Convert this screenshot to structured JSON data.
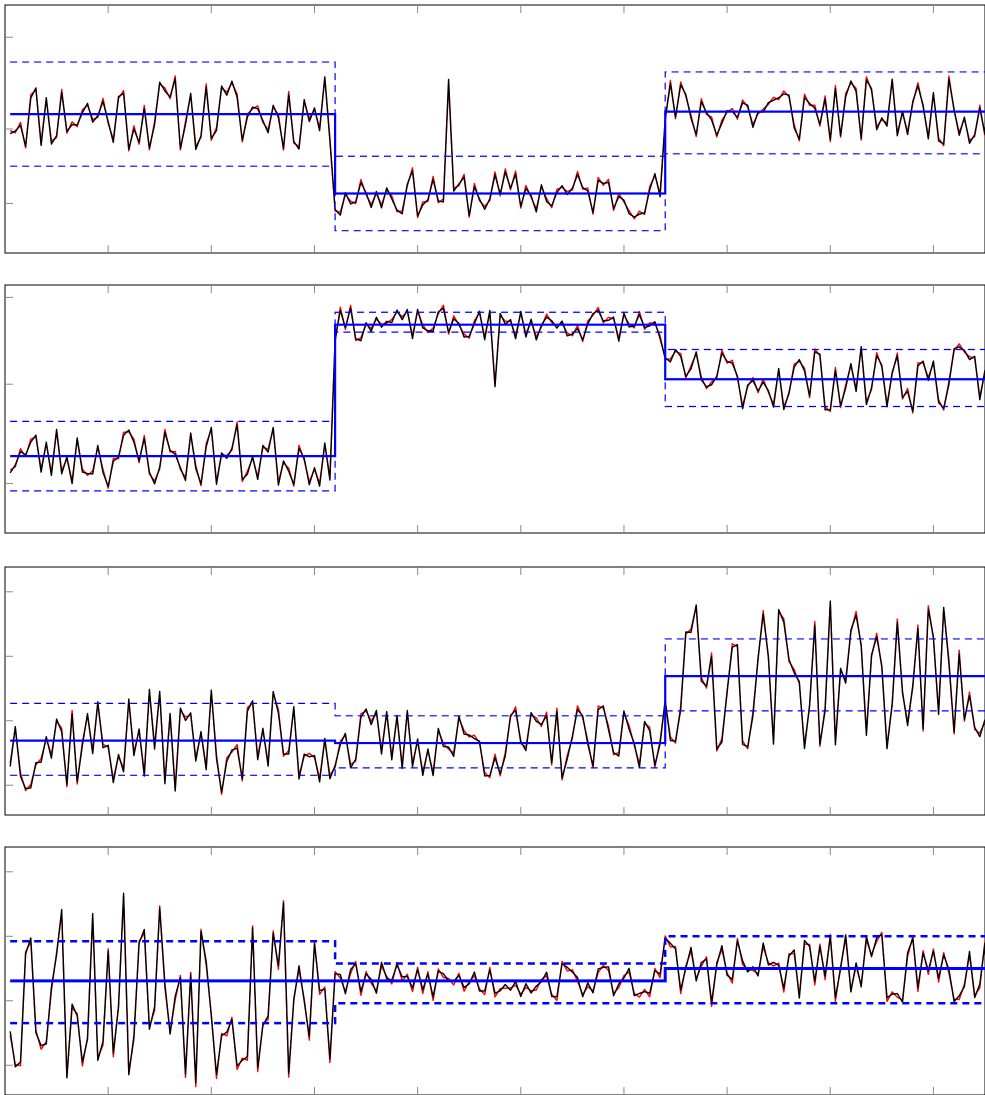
{
  "colors": {
    "frame": "#000000",
    "mean_line": "#0000ff",
    "band_line": "#0000ff",
    "series_black": "#000000",
    "series_red": "#ff0000",
    "background": "#ffffff"
  },
  "chart_data": [
    {
      "type": "line",
      "panel": 1,
      "x_range": [
        0,
        190
      ],
      "ylim": [
        0,
        1
      ],
      "grid": false,
      "x_tick_positions": [
        20,
        40,
        60,
        80,
        100,
        120,
        140,
        160,
        180
      ],
      "y_tick_positions": [
        0.2,
        0.5,
        0.87
      ],
      "segments": [
        {
          "start": 1,
          "end": 64,
          "mean": 0.56,
          "lower": 0.35,
          "upper": 0.77
        },
        {
          "start": 64,
          "end": 128,
          "mean": 0.24,
          "lower": 0.09,
          "upper": 0.39
        },
        {
          "start": 128,
          "end": 190,
          "mean": 0.57,
          "lower": 0.4,
          "upper": 0.73
        }
      ],
      "series": [
        {
          "color_key": "series_black",
          "seed": 11,
          "noise": [
            0.08,
            0.05,
            0.07
          ],
          "spike": {
            "x": 86,
            "value": 0.7
          }
        },
        {
          "color_key": "series_red",
          "seed": 11,
          "noise": [
            0.08,
            0.05,
            0.07
          ],
          "offset": 0.012,
          "spike": {
            "x": 86,
            "value": 0.68
          }
        }
      ]
    },
    {
      "type": "line",
      "panel": 2,
      "x_range": [
        0,
        190
      ],
      "ylim": [
        0,
        1
      ],
      "grid": false,
      "x_tick_positions": [
        20,
        40,
        60,
        80,
        100,
        120,
        140,
        160,
        180
      ],
      "y_tick_positions": [
        0.2,
        0.6,
        0.95
      ],
      "segments": [
        {
          "start": 1,
          "end": 64,
          "mean": 0.31,
          "lower": 0.17,
          "upper": 0.45
        },
        {
          "start": 64,
          "end": 128,
          "mean": 0.84,
          "lower": 0.81,
          "upper": 0.89
        },
        {
          "start": 128,
          "end": 190,
          "mean": 0.62,
          "lower": 0.51,
          "upper": 0.74
        }
      ],
      "series": [
        {
          "color_key": "series_black",
          "seed": 23,
          "noise": [
            0.07,
            0.035,
            0.07
          ],
          "spike": {
            "x": 95,
            "value": 0.59
          }
        },
        {
          "color_key": "series_red",
          "seed": 23,
          "noise": [
            0.07,
            0.035,
            0.07
          ],
          "offset": 0.012,
          "spike": {
            "x": 95,
            "value": 0.6
          }
        }
      ]
    },
    {
      "type": "line",
      "panel": 3,
      "x_range": [
        0,
        190
      ],
      "ylim": [
        0,
        1
      ],
      "grid": false,
      "x_tick_positions": [
        20,
        40,
        60,
        80,
        100,
        120,
        140,
        160,
        180
      ],
      "y_tick_positions": [
        0.12,
        0.38,
        0.64,
        0.9
      ],
      "segments": [
        {
          "start": 1,
          "end": 64,
          "mean": 0.3,
          "lower": 0.16,
          "upper": 0.45
        },
        {
          "start": 64,
          "end": 128,
          "mean": 0.29,
          "lower": 0.19,
          "upper": 0.4
        },
        {
          "start": 128,
          "end": 190,
          "mean": 0.56,
          "lower": 0.42,
          "upper": 0.71
        }
      ],
      "series": [
        {
          "color_key": "series_black",
          "seed": 37,
          "noise": [
            0.11,
            0.08,
            0.16
          ]
        },
        {
          "color_key": "series_red",
          "seed": 37,
          "noise": [
            0.11,
            0.08,
            0.16
          ],
          "offset": 0.014
        }
      ]
    },
    {
      "type": "line",
      "panel": 4,
      "x_range": [
        0,
        190
      ],
      "ylim": [
        0,
        1
      ],
      "grid": false,
      "x_tick_positions": [
        20,
        40,
        60,
        80,
        100,
        120,
        140,
        160,
        180
      ],
      "y_tick_positions": [
        0.12,
        0.38,
        0.64,
        0.9
      ],
      "segments": [
        {
          "start": 1,
          "end": 64,
          "mean": 0.46,
          "lower": 0.29,
          "upper": 0.62
        },
        {
          "start": 64,
          "end": 128,
          "mean": 0.46,
          "lower": 0.37,
          "upper": 0.53
        },
        {
          "start": 128,
          "end": 190,
          "mean": 0.51,
          "lower": 0.37,
          "upper": 0.64
        }
      ],
      "series": [
        {
          "color_key": "series_black",
          "seed": 53,
          "noise": [
            0.22,
            0.04,
            0.075
          ]
        },
        {
          "color_key": "series_red",
          "seed": 53,
          "noise": [
            0.22,
            0.04,
            0.075
          ],
          "offset": -0.015
        }
      ]
    }
  ]
}
